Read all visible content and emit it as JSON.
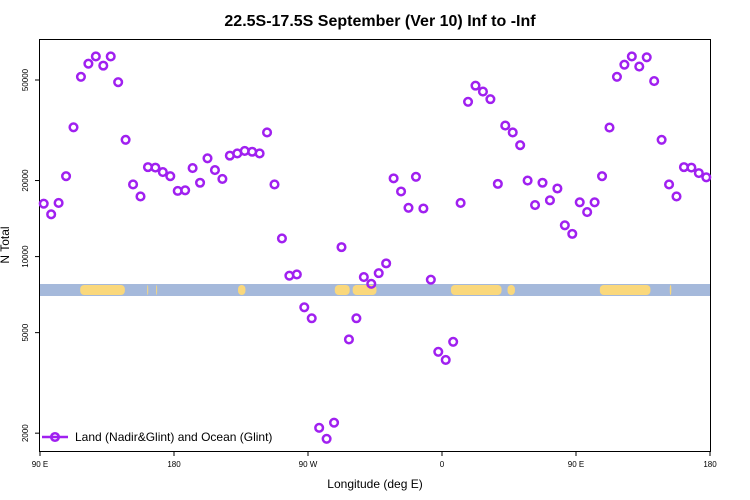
{
  "chart_data": {
    "type": "scatter",
    "title": "22.5S-17.5S September (Ver 10)   Inf to -Inf",
    "xlabel": "Longitude (deg E)",
    "ylabel": "N Total",
    "x_scale": "linear",
    "y_scale": "log",
    "xlim": [
      90,
      540
    ],
    "ylim": [
      1700,
      72000
    ],
    "x_ticks": [
      {
        "value": 90,
        "label": "90 E"
      },
      {
        "value": 180,
        "label": "180"
      },
      {
        "value": 270,
        "label": "90 W"
      },
      {
        "value": 360,
        "label": "0"
      },
      {
        "value": 450,
        "label": "90 E"
      },
      {
        "value": 540,
        "label": "180"
      }
    ],
    "y_ticks": [
      {
        "value": 2000,
        "label": "2000"
      },
      {
        "value": 5000,
        "label": "5000"
      },
      {
        "value": 10000,
        "label": "10000"
      },
      {
        "value": 20000,
        "label": "20000"
      },
      {
        "value": 50000,
        "label": "50000"
      }
    ],
    "grid": false,
    "legend_position": "bottom-left",
    "series": [
      {
        "name": "Land (Nadir&Glint) and Ocean (Glint)",
        "color": "#a020f0",
        "marker": "open-circle",
        "x": [
          92.5,
          97.5,
          102.5,
          107.5,
          112.5,
          117.5,
          122.5,
          127.5,
          132.5,
          137.5,
          142.5,
          147.5,
          152.5,
          157.5,
          162.5,
          167.5,
          172.5,
          177.5,
          182.5,
          187.5,
          192.5,
          197.5,
          202.5,
          207.5,
          212.5,
          217.5,
          222.5,
          227.5,
          232.5,
          237.5,
          242.5,
          247.5,
          252.5,
          257.5,
          262.5,
          267.5,
          272.5,
          277.5,
          282.5,
          287.5,
          292.5,
          297.5,
          302.5,
          307.5,
          312.5,
          317.5,
          322.5,
          327.5,
          332.5,
          337.5,
          342.5,
          347.5,
          352.5,
          357.5,
          362.5,
          367.5,
          372.5,
          377.5,
          382.5,
          387.5,
          392.5,
          397.5,
          402.5,
          407.5,
          412.5,
          417.5,
          422.5,
          427.5,
          432.5,
          437.5,
          442.5,
          447.5,
          452.5,
          457.5,
          462.5,
          467.5,
          472.5,
          477.5,
          482.5,
          487.5,
          492.5,
          497.5,
          502.5,
          507.5,
          512.5,
          517.5,
          522.5,
          527.5,
          532.5,
          537.5
        ],
        "y": [
          16200,
          14700,
          16300,
          20800,
          32500,
          51500,
          58000,
          62000,
          57000,
          62000,
          49000,
          29000,
          19300,
          17300,
          22600,
          22500,
          21600,
          20800,
          18200,
          18300,
          22400,
          19600,
          24500,
          22000,
          20300,
          25100,
          25600,
          26200,
          26000,
          25600,
          31000,
          19300,
          11800,
          8400,
          8500,
          6300,
          5700,
          2100,
          1900,
          2200,
          10900,
          4700,
          5700,
          8300,
          7800,
          8600,
          9400,
          20400,
          18100,
          15600,
          20700,
          15500,
          8100,
          4200,
          3900,
          4600,
          16300,
          41000,
          47500,
          45000,
          42000,
          19400,
          33000,
          31000,
          27600,
          20000,
          16000,
          19600,
          16700,
          18600,
          13300,
          12300,
          16400,
          15000,
          16400,
          20800,
          32400,
          51500,
          57500,
          62000,
          56500,
          61500,
          49500,
          29000,
          19300,
          17300,
          22600,
          22500,
          21400,
          20600
        ]
      }
    ],
    "surface_strip": {
      "colors": {
        "ocean": "#a5b9db",
        "land": "#fad87c"
      },
      "land_segments": [
        [
          117,
          147
        ],
        [
          162,
          162.5
        ],
        [
          168,
          168.5
        ],
        [
          223,
          228
        ],
        [
          288,
          298
        ],
        [
          300,
          316
        ],
        [
          366,
          400
        ],
        [
          404,
          409
        ],
        [
          466,
          500
        ],
        [
          513,
          514
        ]
      ]
    }
  }
}
